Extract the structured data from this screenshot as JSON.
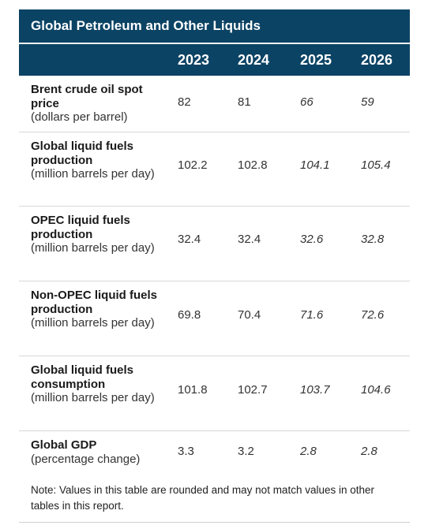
{
  "table": {
    "title": "Global Petroleum and Other Liquids",
    "years": [
      "2023",
      "2024",
      "2025",
      "2026"
    ],
    "rows": [
      {
        "label": "Brent crude oil spot price",
        "unit": "(dollars per barrel)",
        "values": [
          "82",
          "81",
          "66",
          "59"
        ]
      },
      {
        "label": "Global liquid fuels production",
        "unit": "(million barrels per day)",
        "values": [
          "102.2",
          "102.8",
          "104.1",
          "105.4"
        ]
      },
      {
        "label": "OPEC liquid fuels production",
        "unit": "(million barrels per day)",
        "values": [
          "32.4",
          "32.4",
          "32.6",
          "32.8"
        ]
      },
      {
        "label": "Non-OPEC liquid fuels production",
        "unit": "(million barrels per day)",
        "values": [
          "69.8",
          "70.4",
          "71.6",
          "72.6"
        ]
      },
      {
        "label": "Global liquid fuels consumption",
        "unit": "(million barrels per day)",
        "values": [
          "101.8",
          "102.7",
          "103.7",
          "104.6"
        ]
      },
      {
        "label": "Global GDP",
        "unit": "(percentage change)",
        "values": [
          "3.3",
          "3.2",
          "2.8",
          "2.8"
        ]
      }
    ],
    "note": "Note: Values in this table are rounded and may not match values in other tables in this report."
  },
  "colors": {
    "header_bg": "#0b4364",
    "header_text": "#ffffff",
    "row_divider": "#d9d9d9"
  }
}
